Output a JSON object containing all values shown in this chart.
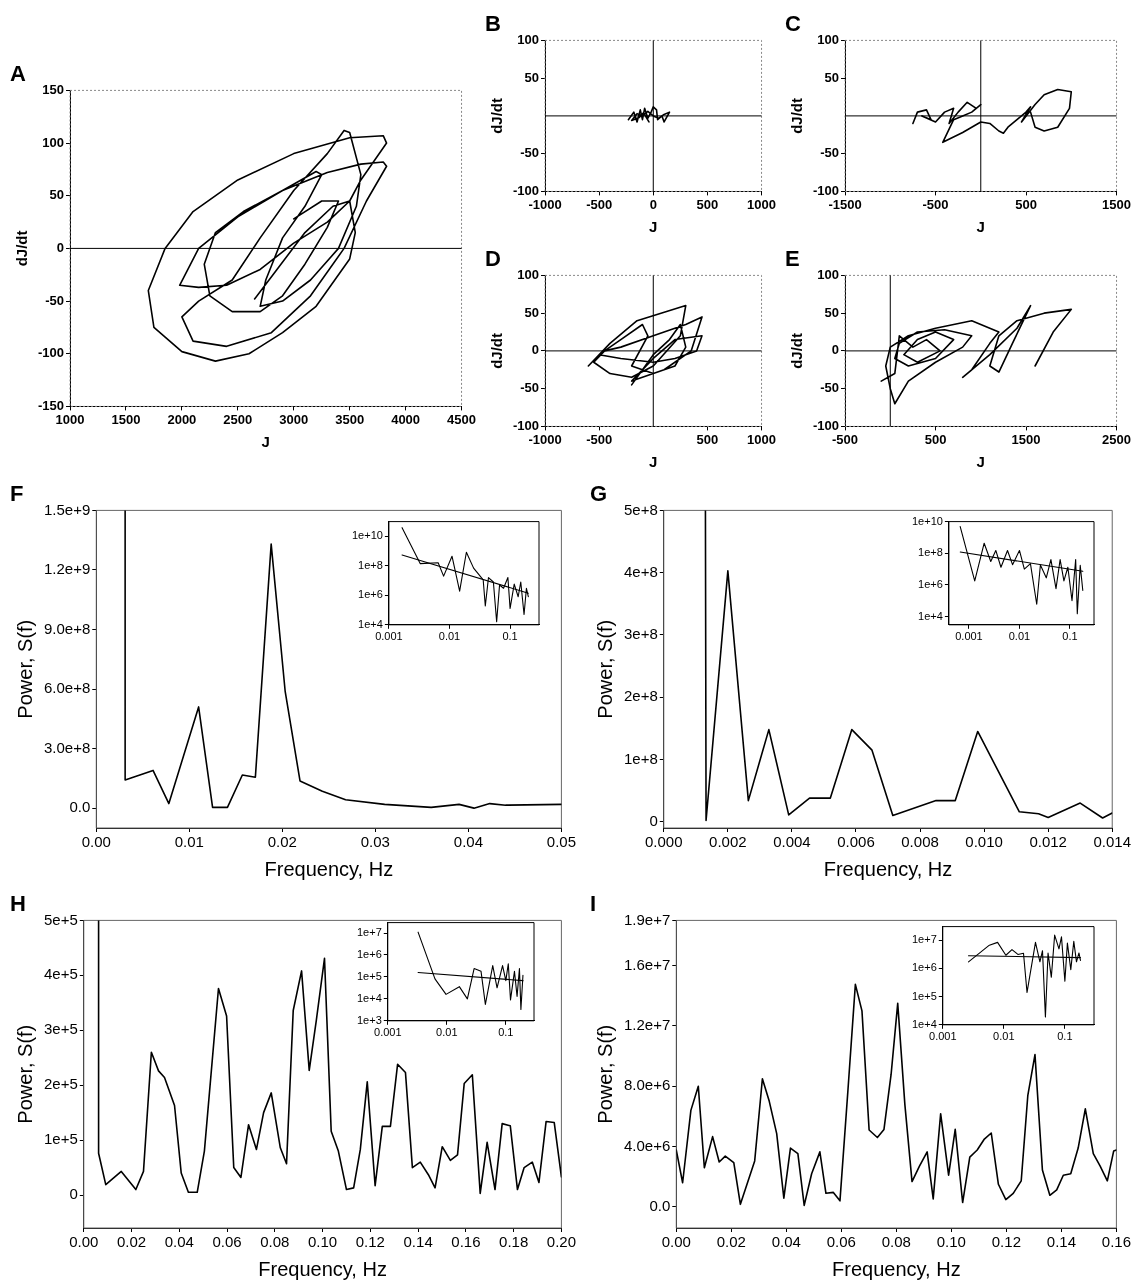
{
  "chart_data": [
    {
      "type": "line",
      "title": "A",
      "xlabel": "J",
      "ylabel": "dJ/dt",
      "xlim": [
        1000,
        4500
      ],
      "ylim": [
        -150,
        150
      ],
      "xticks": [
        1000,
        1500,
        2000,
        2500,
        3000,
        3500,
        4000,
        4500
      ],
      "yticks": [
        -150,
        -100,
        -50,
        0,
        50,
        100,
        150
      ],
      "ref_lines": [
        {
          "axis": "y",
          "value": 0
        }
      ],
      "series": [
        {
          "color": "#000000",
          "x": [
            3000,
            3250,
            3400,
            3300,
            3100,
            2900,
            2700,
            2450,
            2250,
            2200,
            2300,
            2550,
            2900,
            3200,
            3250,
            3100,
            2900,
            2750,
            2700,
            2900,
            3150,
            3400,
            3560,
            3600,
            3500,
            3450,
            3300,
            3000,
            2700,
            2450,
            2150,
            2000,
            2100,
            2400,
            2800,
            3150,
            3450,
            3650,
            3830,
            3800,
            3600,
            3300,
            2900,
            2500,
            2150,
            1980,
            2150,
            2400,
            2700,
            3000,
            3300,
            3500,
            3600,
            3830,
            3800,
            3500,
            3000,
            2500,
            2100,
            1850,
            1700,
            1750,
            2000,
            2300,
            2600,
            2900,
            3200,
            3500,
            3550,
            3500,
            3350,
            3100,
            2850,
            2650
          ],
          "values": [
            28,
            45,
            45,
            20,
            -15,
            -45,
            -60,
            -60,
            -45,
            -15,
            15,
            35,
            55,
            73,
            70,
            40,
            10,
            -30,
            -55,
            -50,
            -30,
            0,
            40,
            70,
            110,
            112,
            90,
            55,
            10,
            -30,
            -50,
            -65,
            -88,
            -93,
            -80,
            -45,
            0,
            45,
            78,
            82,
            80,
            72,
            55,
            30,
            0,
            -35,
            -37,
            -35,
            -20,
            5,
            25,
            45,
            65,
            100,
            107,
            105,
            90,
            65,
            35,
            0,
            -40,
            -75,
            -98,
            -107,
            -100,
            -80,
            -55,
            -10,
            15,
            45,
            40,
            15,
            -20,
            -48
          ]
        }
      ]
    },
    {
      "type": "line",
      "title": "B",
      "xlabel": "J",
      "ylabel": "dJ/dt",
      "xlim": [
        -1000,
        1000
      ],
      "ylim": [
        -100,
        100
      ],
      "xticks": [
        -1000,
        -500,
        0,
        500,
        1000
      ],
      "yticks": [
        -100,
        -50,
        50,
        100
      ],
      "ref_lines": [
        {
          "axis": "y",
          "value": 0
        },
        {
          "axis": "x",
          "value": 0
        }
      ],
      "series": [
        {
          "color": "#000000",
          "x": [
            -230,
            -180,
            -150,
            -120,
            -100,
            -80,
            -50,
            -20,
            0,
            30,
            40,
            80,
            100,
            150,
            100,
            50,
            0,
            -50,
            -100,
            -150,
            -200,
            -130,
            -90,
            -40
          ],
          "values": [
            -5,
            5,
            -8,
            8,
            -5,
            10,
            -3,
            5,
            12,
            8,
            -5,
            0,
            -8,
            5,
            2,
            -3,
            0,
            6,
            0,
            3,
            -6,
            -2,
            4,
            -8
          ]
        }
      ]
    },
    {
      "type": "line",
      "title": "C",
      "xlabel": "J",
      "ylabel": "dJ/dt",
      "xlim": [
        -1500,
        1500
      ],
      "ylim": [
        -100,
        100
      ],
      "xticks": [
        -1500,
        -500,
        500,
        1500
      ],
      "yticks": [
        -100,
        -50,
        50,
        100
      ],
      "ref_lines": [
        {
          "axis": "y",
          "value": 0
        },
        {
          "axis": "x",
          "value": 0
        }
      ],
      "series": [
        {
          "color": "#000000",
          "x": [
            -750,
            -700,
            -600,
            -550,
            -650,
            -500,
            -400,
            -300,
            -350,
            -250,
            -150,
            -50,
            0,
            -100,
            -200,
            -300,
            -420,
            -200,
            0,
            100,
            200,
            250,
            300,
            400,
            500,
            550,
            450,
            600,
            700,
            850,
            1000,
            980,
            850,
            700,
            600,
            550
          ],
          "values": [
            -10,
            5,
            8,
            -5,
            0,
            -8,
            5,
            10,
            -10,
            5,
            18,
            10,
            15,
            5,
            0,
            -5,
            -35,
            -22,
            -8,
            -10,
            -20,
            -23,
            -15,
            -5,
            5,
            12,
            -8,
            15,
            28,
            35,
            32,
            10,
            -15,
            -20,
            -15,
            5
          ]
        }
      ]
    },
    {
      "type": "line",
      "title": "D",
      "xlabel": "J",
      "ylabel": "dJ/dt",
      "xlim": [
        -1000,
        1000
      ],
      "ylim": [
        -100,
        100
      ],
      "xticks": [
        -1000,
        -500,
        500,
        1000
      ],
      "yticks": [
        -100,
        -50,
        0,
        50,
        100
      ],
      "ref_lines": [
        {
          "axis": "y",
          "value": 0
        },
        {
          "axis": "x",
          "value": 0
        }
      ],
      "series": [
        {
          "color": "#000000",
          "x": [
            -600,
            -400,
            -150,
            300,
            250,
            0,
            -200,
            -400,
            -550,
            -450,
            -300,
            0,
            300,
            450,
            350,
            100,
            -200,
            0,
            200,
            450,
            400,
            200,
            0,
            -300,
            -500,
            -300,
            -100,
            -50,
            -200,
            0,
            200,
            300,
            250,
            150,
            0,
            -200
          ],
          "values": [
            -20,
            10,
            40,
            60,
            20,
            -20,
            -35,
            -30,
            -15,
            0,
            5,
            20,
            35,
            45,
            0,
            -25,
            -40,
            -10,
            15,
            20,
            0,
            -10,
            -15,
            -10,
            -5,
            15,
            35,
            20,
            -20,
            -30,
            -20,
            5,
            35,
            15,
            -5,
            -45
          ]
        }
      ]
    },
    {
      "type": "line",
      "title": "E",
      "xlabel": "J",
      "ylabel": "dJ/dt",
      "xlim": [
        -500,
        2500
      ],
      "ylim": [
        -100,
        100
      ],
      "xticks": [
        -500,
        500,
        1500,
        2500
      ],
      "yticks": [
        -100,
        -50,
        0,
        50,
        100
      ],
      "ref_lines": [
        {
          "axis": "y",
          "value": 0
        },
        {
          "axis": "x",
          "value": 0
        }
      ],
      "series": [
        {
          "color": "#000000",
          "x": [
            1600,
            1800,
            2000,
            1700,
            1400,
            1200,
            1100,
            1200,
            1350,
            1550,
            1400,
            1100,
            800,
            900,
            1100,
            1200,
            900,
            500,
            200,
            0,
            -50,
            0,
            50,
            200,
            500,
            800,
            900,
            600,
            300,
            100,
            50,
            200,
            500,
            700,
            500,
            300,
            150,
            300,
            550,
            400,
            250,
            100,
            50,
            -100
          ],
          "values": [
            -20,
            25,
            55,
            50,
            40,
            20,
            -20,
            -28,
            10,
            60,
            30,
            -5,
            -35,
            -25,
            10,
            25,
            40,
            30,
            20,
            5,
            -20,
            -50,
            -70,
            -40,
            -15,
            5,
            20,
            28,
            25,
            10,
            -10,
            -20,
            -10,
            15,
            25,
            15,
            -5,
            -15,
            0,
            15,
            5,
            20,
            -30,
            -40
          ]
        }
      ]
    },
    {
      "type": "line",
      "title": "F",
      "xlabel": "Frequency, Hz",
      "ylabel": "Power, S(f)",
      "xlim": [
        0,
        0.05
      ],
      "ylim": [
        -100000000.0,
        1500000000.0
      ],
      "xticks": [
        {
          "value": 0,
          "label": "0.00"
        },
        0.01,
        0.02,
        0.03,
        0.04,
        0.05
      ],
      "yticks": [
        {
          "value": 0,
          "label": "0.0"
        },
        {
          "value": 300000000.0,
          "label": "3.0e+8"
        },
        {
          "value": 600000000.0,
          "label": "6.0e+8"
        },
        {
          "value": 900000000.0,
          "label": "9.0e+8"
        },
        {
          "value": 1200000000.0,
          "label": "1.2e+9"
        },
        {
          "value": 1500000000.0,
          "label": "1.5e+9"
        }
      ],
      "series": [
        {
          "color": "#000000",
          "x": [
            0.0031,
            0.0031,
            0.0061,
            0.0078,
            0.011,
            0.0125,
            0.0141,
            0.0157,
            0.0171,
            0.0188,
            0.0203,
            0.0219,
            0.0243,
            0.0268,
            0.031,
            0.036,
            0.039,
            0.0406,
            0.0423,
            0.044,
            0.05
          ],
          "values": [
            1500000000.0,
            142000000.0,
            190000000.0,
            23000000.0,
            510000000.0,
            4000000.0,
            4000000.0,
            167000000.0,
            156000000.0,
            1330000000.0,
            590000000.0,
            137000000.0,
            85000000.0,
            42000000.0,
            19000000.0,
            4000000.0,
            19000000.0,
            0,
            23000000.0,
            15000000.0,
            19000000.0
          ]
        }
      ]
    },
    {
      "type": "line",
      "log": "xy",
      "xlim": [
        0.001,
        0.3
      ],
      "ylim": [
        10000.0,
        100000000000.0
      ],
      "xticks": [
        0.001,
        0.01,
        0.1
      ],
      "yticks": [
        {
          "value": 10000.0,
          "label": "1e+4"
        },
        {
          "value": 1000000.0,
          "label": "1e+6"
        },
        {
          "value": 100000000.0,
          "label": "1e+8"
        },
        {
          "value": 10000000000.0,
          "label": "1e+10"
        }
      ],
      "series": [
        {
          "color": "#000000",
          "x": [
            0.00165,
            0.0033,
            0.0065,
            0.008,
            0.011,
            0.0147,
            0.019,
            0.025,
            0.036,
            0.039,
            0.044,
            0.053,
            0.06,
            0.067,
            0.078,
            0.092,
            0.1,
            0.117,
            0.136,
            0.15,
            0.17,
            0.186,
            0.2
          ],
          "values": [
            39000000000.0,
            140000000.0,
            160000000.0,
            20000000.0,
            450000000.0,
            1900000.0,
            830000000.0,
            70000000.0,
            11000000.0,
            190000.0,
            16000000.0,
            8000000.0,
            16000.0,
            5000000.0,
            3000000.0,
            16000000.0,
            130000.0,
            5800000.0,
            800000.0,
            8000000.0,
            50000.0,
            3000000.0,
            800000.0
          ]
        },
        {
          "type": "line",
          "color": "#000000",
          "x": [
            0.00165,
            0.2
          ],
          "values": [
            540000000.0,
            1400000.0
          ]
        }
      ]
    },
    {
      "type": "line",
      "title": "G",
      "xlabel": "Frequency, Hz",
      "ylabel": "Power, S(f)",
      "xlim": [
        0,
        0.014
      ],
      "ylim": [
        -10000000.0,
        500000000.0
      ],
      "xticks": [
        {
          "value": 0,
          "label": "0.000"
        },
        0.002,
        0.004,
        0.006,
        0.008,
        {
          "value": 0.01,
          "label": "0.010"
        },
        0.012,
        0.014
      ],
      "yticks": [
        0,
        {
          "value": 100000000.0,
          "label": "1e+8"
        },
        {
          "value": 200000000.0,
          "label": "2e+8"
        },
        {
          "value": 300000000.0,
          "label": "3e+8"
        },
        {
          "value": 400000000.0,
          "label": "4e+8"
        },
        {
          "value": 500000000.0,
          "label": "5e+8"
        }
      ],
      "series": [
        {
          "color": "#000000",
          "x": [
            0.0013,
            0.00132,
            0.002,
            0.00264,
            0.00328,
            0.0039,
            0.00455,
            0.0052,
            0.00587,
            0.0065,
            0.00715,
            0.0085,
            0.0091,
            0.0098,
            0.0111,
            0.0117,
            0.012,
            0.013,
            0.0137,
            0.014
          ],
          "values": [
            500000000.0,
            2000000.0,
            403000000.0,
            34000000.0,
            148000000.0,
            11000000.0,
            38000000.0,
            38000000.0,
            148000000.0,
            115000000.0,
            10000000.0,
            34000000.0,
            34000000.0,
            145000000.0,
            16000000.0,
            13000000.0,
            7000000.0,
            30000000.0,
            6000000.0,
            14000000.0
          ]
        }
      ]
    },
    {
      "type": "line",
      "log": "xy",
      "xlim": [
        0.0004,
        0.3
      ],
      "ylim": [
        3000.0,
        10000000000.0
      ],
      "xticks": [
        0.001,
        0.01,
        0.1
      ],
      "yticks": [
        {
          "value": 10000.0,
          "label": "1e+4"
        },
        {
          "value": 1000000.0,
          "label": "1e+6"
        },
        {
          "value": 100000000.0,
          "label": "1e+8"
        },
        {
          "value": 10000000000.0,
          "label": "1e+10"
        }
      ],
      "series": [
        {
          "color": "#000000",
          "x": [
            0.00067,
            0.0013,
            0.002,
            0.0027,
            0.0034,
            0.0043,
            0.0058,
            0.0073,
            0.01,
            0.0125,
            0.0165,
            0.022,
            0.026,
            0.034,
            0.042,
            0.053,
            0.064,
            0.076,
            0.091,
            0.11,
            0.13,
            0.14,
            0.16,
            0.18
          ],
          "values": [
            4800000000.0,
            1800000.0,
            430000000.0,
            30000000.0,
            150000000.0,
            13000000.0,
            150000000.0,
            19000000.0,
            150000000.0,
            10000000.0,
            22000000.0,
            60000.0,
            18000000.0,
            2800000.0,
            40000000.0,
            580000.0,
            40000000.0,
            1800000.0,
            13000000.0,
            100000.0,
            40000000.0,
            15000.0,
            17000000.0,
            440000.0
          ]
        },
        {
          "type": "line",
          "color": "#000000",
          "x": [
            0.00067,
            0.18
          ],
          "values": [
            120000000.0,
            7200000.0
          ]
        }
      ]
    },
    {
      "type": "line",
      "title": "H",
      "xlabel": "Frequency, Hz",
      "ylabel": "Power, S(f)",
      "xlim": [
        0,
        0.2
      ],
      "ylim": [
        -60000.0,
        500000.0
      ],
      "xticks": [
        {
          "value": 0,
          "label": "0.00"
        },
        0.02,
        0.04,
        0.06,
        0.08,
        {
          "value": 0.1,
          "label": "0.10"
        },
        0.12,
        0.14,
        0.16,
        0.18,
        {
          "value": 0.2,
          "label": "0.20"
        }
      ],
      "yticks": [
        0,
        {
          "value": 100000.0,
          "label": "1e+5"
        },
        {
          "value": 200000.0,
          "label": "2e+5"
        },
        {
          "value": 300000.0,
          "label": "3e+5"
        },
        {
          "value": 400000.0,
          "label": "4e+5"
        },
        {
          "value": 500000.0,
          "label": "5e+5"
        }
      ],
      "series": [
        {
          "color": "#000000",
          "x": [
            0.0062,
            0.0062,
            0.0092,
            0.0157,
            0.0218,
            0.025,
            0.0283,
            0.0313,
            0.0338,
            0.038,
            0.0408,
            0.0438,
            0.0475,
            0.0505,
            0.0564,
            0.0598,
            0.0628,
            0.0658,
            0.069,
            0.0723,
            0.0753,
            0.0785,
            0.0823,
            0.0849,
            0.0877,
            0.0912,
            0.0944,
            0.0974,
            0.1008,
            0.1036,
            0.1066,
            0.11,
            0.113,
            0.1158,
            0.1187,
            0.122,
            0.125,
            0.1284,
            0.1314,
            0.1347,
            0.1376,
            0.1409,
            0.1443,
            0.1471,
            0.1501,
            0.1535,
            0.1565,
            0.1593,
            0.1627,
            0.166,
            0.1689,
            0.1722,
            0.1752,
            0.1786,
            0.1816,
            0.1844,
            0.1878,
            0.1906,
            0.1936,
            0.197,
            0.2
          ],
          "values": [
            500000.0,
            76000.0,
            19000.0,
            43000.0,
            10000.0,
            43000.0,
            260000.0,
            226000.0,
            214000.0,
            163000.0,
            40000.0,
            5000.0,
            5000.0,
            80000.0,
            376000.0,
            326000.0,
            50000.0,
            32000.0,
            128000.0,
            83000.0,
            150000.0,
            186000.0,
            86000.0,
            57000.0,
            336000.0,
            408000.0,
            227000.0,
            319000.0,
            431000.0,
            116000.0,
            80000.0,
            10000.0,
            13000.0,
            83000.0,
            206000.0,
            17000.0,
            125000.0,
            125000.0,
            238000.0,
            223000.0,
            50000.0,
            60000.0,
            37000.0,
            13000.0,
            88000.0,
            63000.0,
            73000.0,
            203000.0,
            219000.0,
            3000.0,
            96000.0,
            10000.0,
            130000.0,
            126000.0,
            10000.0,
            50000.0,
            60000.0,
            23000.0,
            134000.0,
            132000.0,
            33000.0
          ]
        }
      ]
    },
    {
      "type": "line",
      "log": "xy",
      "xlim": [
        0.001,
        0.3
      ],
      "ylim": [
        1000.0,
        30000000.0
      ],
      "xticks": [
        0.001,
        0.01,
        0.1
      ],
      "yticks": [
        {
          "value": 1000.0,
          "label": "1e+3"
        },
        {
          "value": 10000.0,
          "label": "1e+4"
        },
        {
          "value": 100000.0,
          "label": "1e+5"
        },
        {
          "value": 1000000.0,
          "label": "1e+6"
        },
        {
          "value": 10000000.0,
          "label": "1e+7"
        }
      ],
      "series": [
        {
          "color": "#000000",
          "x": [
            0.00326,
            0.0063,
            0.0097,
            0.0163,
            0.0223,
            0.029,
            0.038,
            0.045,
            0.06,
            0.071,
            0.088,
            0.1,
            0.11,
            0.12,
            0.14,
            0.155,
            0.17,
            0.18,
            0.195
          ],
          "values": [
            11000000.0,
            82000.0,
            16000.0,
            36000.0,
            10000.0,
            240000.0,
            180000.0,
            5600.0,
            330000.0,
            32000.0,
            330000.0,
            68000.0,
            400000.0,
            9000.0,
            180000.0,
            13000.0,
            240000.0,
            3300.0,
            120000.0
          ]
        },
        {
          "type": "line",
          "color": "#000000",
          "x": [
            0.00326,
            0.195
          ],
          "values": [
            160000.0,
            68000.0
          ]
        }
      ]
    },
    {
      "type": "line",
      "title": "I",
      "xlabel": "Frequency, Hz",
      "ylabel": "Power, S(f)",
      "xlim": [
        0,
        0.16
      ],
      "ylim": [
        -1400000.0,
        19000000.0
      ],
      "xticks": [
        {
          "value": 0,
          "label": "0.00"
        },
        0.02,
        0.04,
        0.06,
        0.08,
        {
          "value": 0.1,
          "label": "0.10"
        },
        0.12,
        0.14,
        0.16
      ],
      "yticks": [
        {
          "value": 0,
          "label": "0.0"
        },
        {
          "value": 4000000.0,
          "label": "4.0e+6"
        },
        {
          "value": 8000000.0,
          "label": "8.0e+6"
        },
        {
          "value": 12000000.0,
          "label": "1.2e+7"
        },
        {
          "value": 16000000.0,
          "label": "1.6e+7"
        },
        {
          "value": 19000000.0,
          "label": "1.9e+7"
        }
      ],
      "series": [
        {
          "color": "#000000",
          "x": [
            0,
            0.0023,
            0.0053,
            0.008,
            0.0102,
            0.0132,
            0.0156,
            0.0178,
            0.0209,
            0.0233,
            0.0285,
            0.0313,
            0.0338,
            0.0365,
            0.0391,
            0.0415,
            0.0442,
            0.0465,
            0.0492,
            0.0522,
            0.0544,
            0.0571,
            0.0595,
            0.0624,
            0.0651,
            0.0675,
            0.0701,
            0.0731,
            0.0755,
            0.0781,
            0.0805,
            0.0831,
            0.0857,
            0.0884,
            0.0912,
            0.0934,
            0.0961,
            0.099,
            0.1014,
            0.1041,
            0.1067,
            0.1094,
            0.112,
            0.1145,
            0.1171,
            0.1198,
            0.1225,
            0.1254,
            0.1278,
            0.1304,
            0.1331,
            0.1358,
            0.1383,
            0.1407,
            0.1434,
            0.1461,
            0.1487,
            0.1516,
            0.1541,
            0.1567,
            0.159,
            0.16
          ],
          "values": [
            3770000.0,
            1600000.0,
            6400000.0,
            8000000.0,
            2600000.0,
            4660000.0,
            2980000.0,
            3370000.0,
            2930000.0,
            170000.0,
            3050000.0,
            8500000.0,
            7000000.0,
            4860000.0,
            580000.0,
            3900000.0,
            3530000.0,
            100000.0,
            2200000.0,
            3650000.0,
            900000.0,
            960000.0,
            400000.0,
            7740000.0,
            14760000.0,
            13000000.0,
            5100000.0,
            4600000.0,
            5140000.0,
            8800000.0,
            13500000.0,
            6780000.0,
            1680000.0,
            2700000.0,
            3650000.0,
            530000.0,
            6180000.0,
            2100000.0,
            5140000.0,
            290000.0,
            3300000.0,
            3770000.0,
            4500000.0,
            4900000.0,
            1500000.0,
            480000.0,
            900000.0,
            1730000.0,
            7400000.0,
            10100000.0,
            2450000.0,
            770000.0,
            1130000.0,
            2100000.0,
            2200000.0,
            3900000.0,
            6500000.0,
            3530000.0,
            2700000.0,
            1730000.0,
            3700000.0,
            3770000.0
          ]
        }
      ]
    },
    {
      "type": "line",
      "log": "xy",
      "xlim": [
        0.001,
        0.3
      ],
      "ylim": [
        10000.0,
        30000000.0
      ],
      "xticks": [
        0.001,
        0.01,
        0.1
      ],
      "yticks": [
        {
          "value": 10000.0,
          "label": "1e+4"
        },
        {
          "value": 100000.0,
          "label": "1e+5"
        },
        {
          "value": 1000000.0,
          "label": "1e+6"
        },
        {
          "value": 10000000.0,
          "label": "1e+7"
        }
      ],
      "series": [
        {
          "color": "#000000",
          "x": [
            0.00264,
            0.0058,
            0.0079,
            0.0108,
            0.0136,
            0.017,
            0.021,
            0.024,
            0.033,
            0.039,
            0.043,
            0.048,
            0.053,
            0.06,
            0.068,
            0.08,
            0.088,
            0.1,
            0.11,
            0.125,
            0.14,
            0.155,
            0.17,
            0.18
          ],
          "values": [
            1700000.0,
            6600000.0,
            8300000.0,
            2900000.0,
            4600000.0,
            3100000.0,
            3400000.0,
            140000.0,
            8300000.0,
            1700000.0,
            4200000.0,
            19000.0,
            3500000.0,
            480000.0,
            15000000.0,
            4900000.0,
            13000000.0,
            350000.0,
            7800000.0,
            900000.0,
            9000000.0,
            1700000.0,
            3500000.0,
            1900000.0
          ]
        },
        {
          "type": "line",
          "color": "#000000",
          "x": [
            0.00264,
            0.18
          ],
          "values": [
            2800000.0,
            2400000.0
          ]
        }
      ]
    }
  ]
}
